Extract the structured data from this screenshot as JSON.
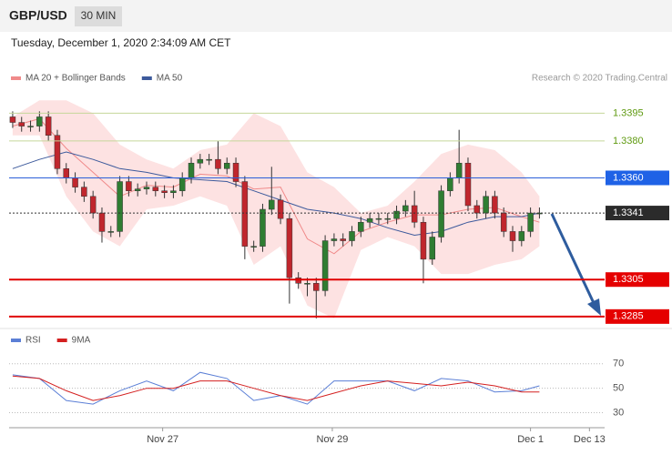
{
  "header": {
    "symbol": "GBP/USD",
    "timeframe": "30 MIN",
    "timestamp": "Tuesday, December 1, 2020 2:34:09 AM CET",
    "credit": "Research © 2020 Trading.Central"
  },
  "chart_data": [
    {
      "type": "candlestick",
      "xlim": [
        -0.4,
        66.3
      ],
      "ylim": [
        1.328,
        1.3407
      ],
      "open": [
        1.3393,
        1.339,
        1.3388,
        1.3388,
        1.3393,
        1.3383,
        1.3365,
        1.336,
        1.3355,
        1.335,
        1.3341,
        1.3331,
        1.3331,
        1.3358,
        1.3353,
        1.3354,
        1.3355,
        1.3353,
        1.3352,
        1.3353,
        1.336,
        1.3368,
        1.337,
        1.337,
        1.3365,
        1.3368,
        1.3358,
        1.3323,
        1.3323,
        1.3343,
        1.3348,
        1.3338,
        1.3306,
        1.3303,
        1.3303,
        1.3299,
        1.3326,
        1.3327,
        1.3326,
        1.3331,
        1.3336,
        1.3338,
        1.3338,
        1.3338,
        1.3342,
        1.3345,
        1.3336,
        1.3316,
        1.3328,
        1.3353,
        1.336,
        1.3368,
        1.3345,
        1.3341,
        1.335,
        1.3341,
        1.3331,
        1.3326,
        1.3331,
        1.3341
      ],
      "high": [
        1.3396,
        1.3393,
        1.3391,
        1.3396,
        1.3396,
        1.3386,
        1.3368,
        1.3363,
        1.3358,
        1.3353,
        1.3344,
        1.3334,
        1.3361,
        1.3361,
        1.3357,
        1.3358,
        1.3358,
        1.3356,
        1.3356,
        1.3363,
        1.3371,
        1.3373,
        1.3373,
        1.338,
        1.3371,
        1.3371,
        1.3361,
        1.3326,
        1.3346,
        1.3366,
        1.3351,
        1.3341,
        1.3309,
        1.3306,
        1.3306,
        1.3329,
        1.333,
        1.333,
        1.3334,
        1.3339,
        1.3341,
        1.3341,
        1.3341,
        1.3345,
        1.3348,
        1.3353,
        1.3339,
        1.3331,
        1.3356,
        1.3363,
        1.3386,
        1.3371,
        1.3348,
        1.3353,
        1.3353,
        1.3344,
        1.3334,
        1.3334,
        1.3344,
        1.3344
      ],
      "low": [
        1.3387,
        1.3385,
        1.3385,
        1.3385,
        1.338,
        1.3362,
        1.3357,
        1.3352,
        1.3347,
        1.3338,
        1.3325,
        1.3328,
        1.3328,
        1.335,
        1.335,
        1.3351,
        1.335,
        1.3349,
        1.3349,
        1.335,
        1.3357,
        1.3365,
        1.3367,
        1.3362,
        1.3362,
        1.3355,
        1.3316,
        1.332,
        1.332,
        1.334,
        1.3335,
        1.3292,
        1.33,
        1.3296,
        1.3284,
        1.3296,
        1.3323,
        1.3323,
        1.3323,
        1.3328,
        1.3333,
        1.3335,
        1.3335,
        1.3335,
        1.3339,
        1.3333,
        1.3303,
        1.3313,
        1.3325,
        1.335,
        1.3357,
        1.3342,
        1.3338,
        1.3338,
        1.3338,
        1.3328,
        1.332,
        1.3323,
        1.3328,
        1.3338
      ],
      "close": [
        1.339,
        1.3388,
        1.3388,
        1.3393,
        1.3383,
        1.3365,
        1.336,
        1.3355,
        1.335,
        1.3341,
        1.3331,
        1.3331,
        1.3358,
        1.3353,
        1.3354,
        1.3355,
        1.3353,
        1.3352,
        1.3353,
        1.336,
        1.3368,
        1.337,
        1.337,
        1.3365,
        1.3368,
        1.3358,
        1.3323,
        1.3323,
        1.3343,
        1.3348,
        1.3338,
        1.3306,
        1.3303,
        1.3303,
        1.3299,
        1.3326,
        1.3327,
        1.3326,
        1.3331,
        1.3336,
        1.3338,
        1.3338,
        1.3338,
        1.3342,
        1.3345,
        1.3336,
        1.3316,
        1.3328,
        1.3353,
        1.336,
        1.3368,
        1.3345,
        1.3341,
        1.335,
        1.3341,
        1.3331,
        1.3326,
        1.3331,
        1.3341,
        1.3341
      ],
      "up_color": "#2f7d32",
      "down_color": "#c0262d",
      "overlay_x": [
        0,
        3,
        6,
        9,
        12,
        15,
        18,
        21,
        24,
        27,
        30,
        33,
        36,
        39,
        42,
        45,
        48,
        51,
        54,
        57,
        59
      ],
      "series": [
        {
          "name": "MA 20 + Bollinger Bands",
          "color": "#f08a8a",
          "band_color": "#fde2e2",
          "values": [
            1.3388,
            1.3392,
            1.3376,
            1.3363,
            1.335,
            1.3356,
            1.3355,
            1.3362,
            1.3361,
            1.3354,
            1.3355,
            1.3327,
            1.3319,
            1.3331,
            1.3336,
            1.334,
            1.334,
            1.3343,
            1.3344,
            1.3339,
            1.3336
          ],
          "upper": [
            1.3393,
            1.3402,
            1.3402,
            1.3395,
            1.3378,
            1.337,
            1.3365,
            1.3375,
            1.3378,
            1.3395,
            1.3388,
            1.3363,
            1.3355,
            1.3341,
            1.3345,
            1.3358,
            1.3373,
            1.3378,
            1.3375,
            1.3363,
            1.335
          ],
          "lower": [
            1.3383,
            1.3383,
            1.335,
            1.3331,
            1.3323,
            1.3343,
            1.3345,
            1.335,
            1.3345,
            1.3313,
            1.3323,
            1.3291,
            1.3284,
            1.3321,
            1.3328,
            1.3323,
            1.3308,
            1.3308,
            1.3313,
            1.3316,
            1.3323
          ]
        },
        {
          "name": "MA 50",
          "color": "#3d5a9c",
          "values": [
            1.3365,
            1.337,
            1.3374,
            1.337,
            1.3365,
            1.3363,
            1.336,
            1.3359,
            1.3358,
            1.3353,
            1.3348,
            1.3343,
            1.3341,
            1.3338,
            1.3333,
            1.3329,
            1.3331,
            1.3336,
            1.3339,
            1.3339,
            1.3341
          ]
        }
      ],
      "levels": [
        {
          "value": 1.3395,
          "color": "#c5d69a",
          "text_color": "#5f9a10",
          "label_bg": "#ffffff",
          "width": 1,
          "style": "solid"
        },
        {
          "value": 1.338,
          "label": "1.3380",
          "color": "#c5d69a",
          "text_color": "#5f9a10",
          "label_bg": "#ffffff",
          "width": 1,
          "style": "solid"
        },
        {
          "value": 1.336,
          "label": "1.3360",
          "color": "#2a5fd8",
          "text_color": "#ffffff",
          "label_bg": "#1f62e6",
          "width": 1,
          "style": "solid"
        },
        {
          "value": 1.3341,
          "color": "#333333",
          "text_color": "#ffffff",
          "label_bg": "#2b2b2b",
          "width": 1,
          "style": "dotted"
        },
        {
          "value": 1.3305,
          "color": "#e00000",
          "text_color": "#ffffff",
          "label_bg": "#e50000",
          "width": 2,
          "style": "solid"
        },
        {
          "value": 1.3285,
          "color": "#e00000",
          "text_color": "#ffffff",
          "label_bg": "#e50000",
          "width": 2,
          "style": "solid"
        }
      ]
    },
    {
      "type": "line",
      "xlim": [
        -0.4,
        66.3
      ],
      "ylim": [
        20,
        81
      ],
      "yticks": [
        30,
        50,
        70
      ],
      "xticks": [
        {
          "value": 16.8,
          "label": "Nov 27"
        },
        {
          "value": 35.8,
          "label": "Nov 29"
        },
        {
          "value": 58,
          "label": "Dec 1"
        },
        {
          "value": 64.6,
          "label": "Dec 13"
        }
      ],
      "x": [
        0,
        3,
        6,
        9,
        12,
        15,
        18,
        21,
        24,
        27,
        30,
        33,
        36,
        39,
        42,
        45,
        48,
        51,
        54,
        57,
        59
      ],
      "series": [
        {
          "name": "RSI",
          "color": "#5b7fd6",
          "values": [
            61,
            58,
            40,
            37,
            48,
            56,
            48,
            63,
            58,
            40,
            44,
            37,
            56,
            56,
            56,
            48,
            58,
            56,
            47,
            48,
            52
          ]
        },
        {
          "name": "9MA",
          "color": "#d42020",
          "values": [
            60,
            58,
            48,
            40,
            44,
            50,
            50,
            56,
            56,
            50,
            44,
            40,
            46,
            52,
            56,
            54,
            52,
            55,
            52,
            47,
            47
          ]
        }
      ]
    }
  ]
}
